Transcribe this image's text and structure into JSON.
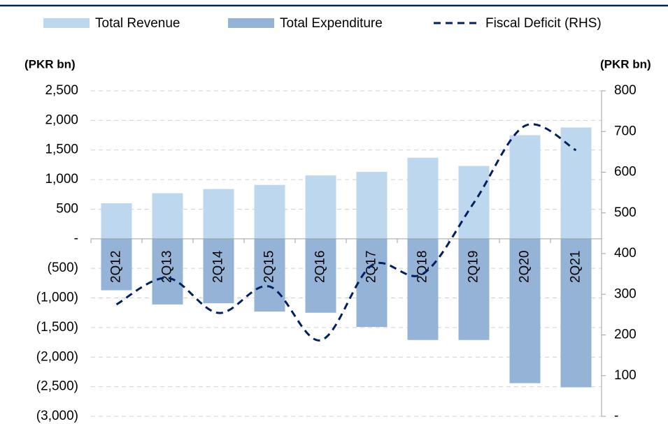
{
  "chart_data": {
    "type": "bar-line",
    "y_label": "(PKR bn)",
    "y2_label": "(PKR bn)",
    "categories": [
      "2Q12",
      "2Q13",
      "2Q14",
      "2Q15",
      "2Q16",
      "2Q17",
      "2Q18",
      "2Q19",
      "2Q20",
      "2Q21"
    ],
    "series": [
      {
        "name": "Total Revenue",
        "type": "bar",
        "color": "#bdd7ee",
        "values": [
          600,
          770,
          840,
          910,
          1070,
          1130,
          1370,
          1230,
          1750,
          1880
        ]
      },
      {
        "name": "Total Expenditure",
        "type": "bar",
        "color": "#95b3d7",
        "values": [
          -870,
          -1110,
          -1090,
          -1230,
          -1250,
          -1490,
          -1710,
          -1710,
          -2440,
          -2510
        ]
      },
      {
        "name": "Fiscal Deficit (RHS)",
        "type": "line",
        "axis": "y2",
        "color": "#002060",
        "dashed": true,
        "values": [
          275,
          340,
          254,
          319,
          187,
          371,
          350,
          525,
          714,
          654
        ]
      }
    ],
    "ylim": [
      -3000,
      2500
    ],
    "yticks": [
      {
        "value": 2500,
        "label": "2,500"
      },
      {
        "value": 2000,
        "label": "2,000"
      },
      {
        "value": 1500,
        "label": "1,500"
      },
      {
        "value": 1000,
        "label": "1,000"
      },
      500,
      {
        "value": 0,
        "label": "-"
      },
      {
        "value": -500,
        "label": "(500)"
      },
      {
        "value": -1000,
        "label": "(1,000)"
      },
      {
        "value": -1500,
        "label": "(1,500)"
      },
      {
        "value": -2000,
        "label": "(2,000)"
      },
      {
        "value": -2500,
        "label": "(2,500)"
      },
      {
        "value": -3000,
        "label": "(3,000)"
      }
    ],
    "y2lim": [
      0,
      800
    ],
    "y2ticks": [
      800,
      700,
      600,
      500,
      400,
      300,
      200,
      100,
      {
        "value": 0,
        "label": "-"
      }
    ],
    "grid": true,
    "legend": "top"
  }
}
